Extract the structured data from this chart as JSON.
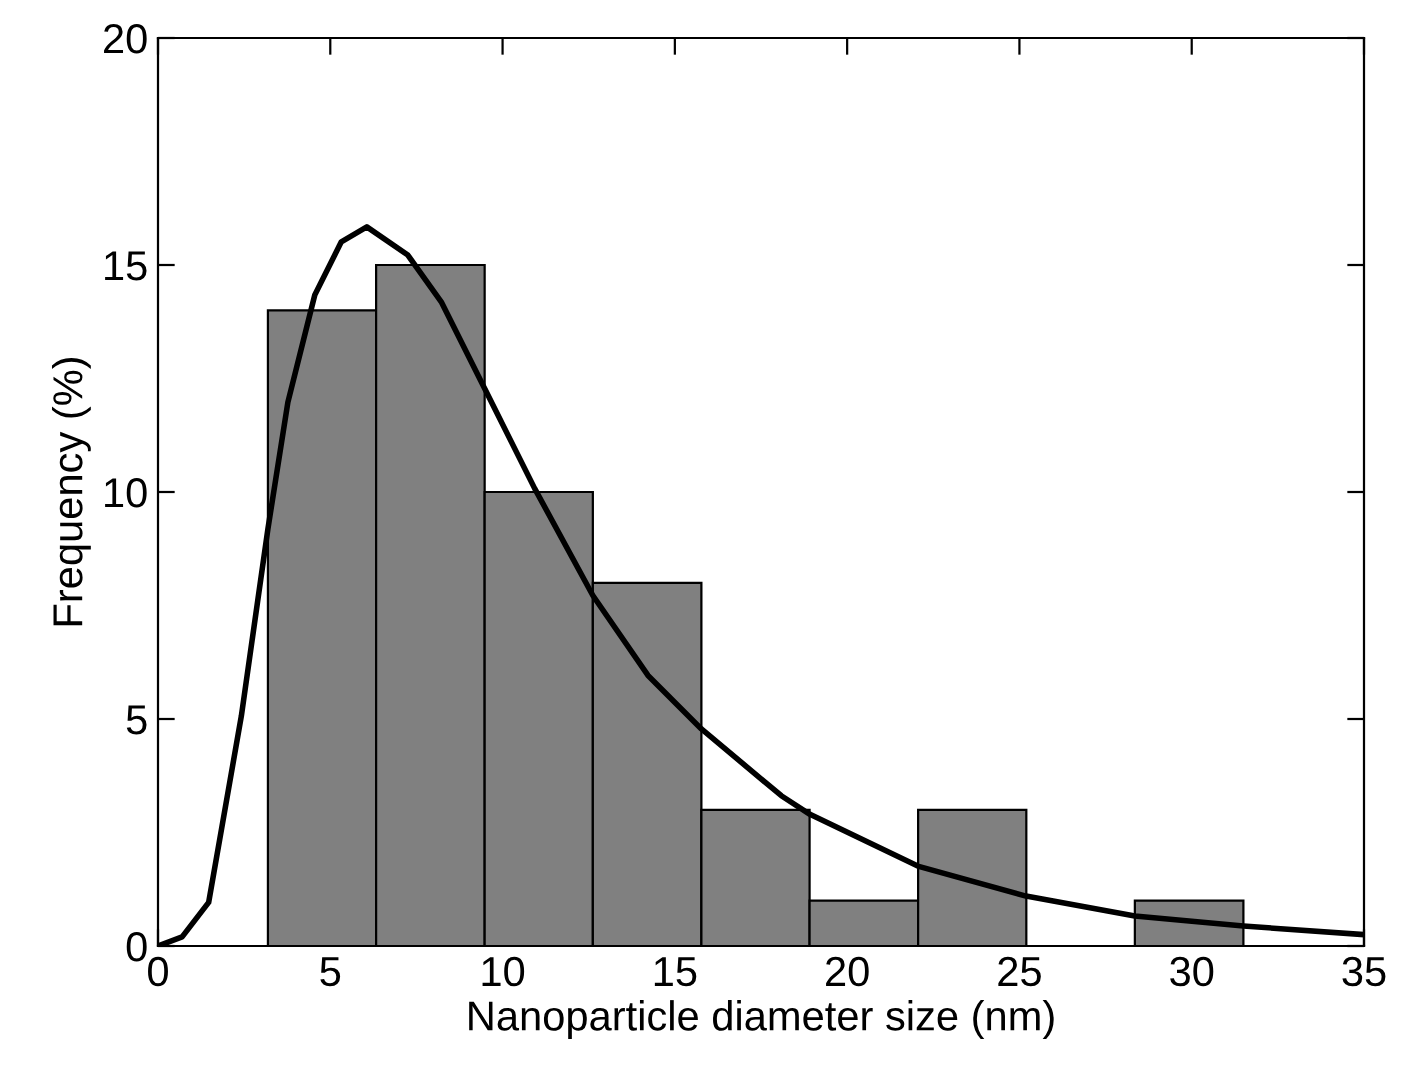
{
  "chart_data": {
    "type": "histogram",
    "xlabel": "Nanoparticle diameter size (nm)",
    "ylabel": "Frequency (%)",
    "bins": [
      3.19,
      6.33,
      9.48,
      12.62,
      15.77,
      18.91,
      22.06,
      25.2,
      28.35,
      31.5
    ],
    "values": [
      14,
      15,
      10,
      8,
      3,
      1,
      3,
      0,
      1
    ],
    "color": "#808080",
    "series": [
      {
        "type": "line",
        "color": "#000000",
        "x": [
          0,
          0.7,
          1.47,
          2.42,
          3.19,
          3.77,
          4.55,
          5.32,
          6.06,
          7.25,
          8.22,
          9.48,
          10.93,
          12.62,
          14.22,
          15.77,
          18.09,
          18.92,
          22.05,
          25.19,
          28.35,
          31.5,
          35
        ],
        "values": [
          0,
          0.2,
          0.96,
          5.07,
          9.19,
          11.98,
          14.34,
          15.51,
          15.84,
          15.22,
          14.19,
          12.28,
          10.08,
          7.72,
          5.96,
          4.78,
          3.31,
          2.9,
          1.76,
          1.1,
          0.66,
          0.44,
          0.25
        ]
      }
    ],
    "xlim": [
      0,
      35
    ],
    "xticks": [
      0,
      5,
      10,
      15,
      20,
      25,
      30,
      35
    ],
    "ylim": [
      0,
      20
    ],
    "yticks": [
      0,
      5,
      10,
      15,
      20
    ],
    "grid": false,
    "legend": false
  }
}
